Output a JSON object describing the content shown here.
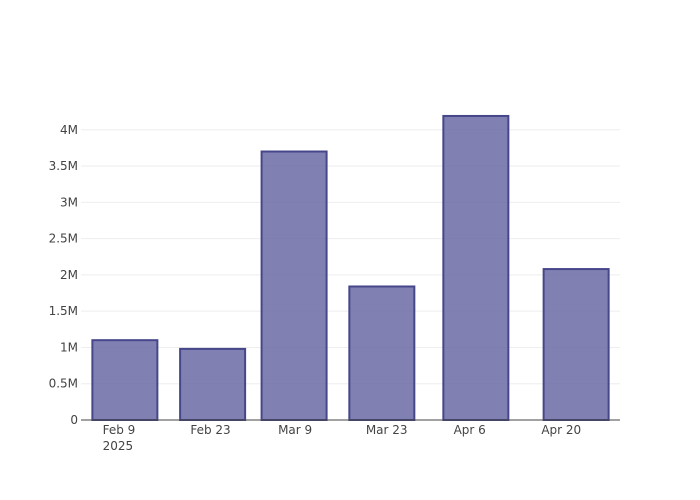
{
  "chart_data": {
    "type": "bar",
    "categories": [
      "2025-02-09",
      "2025-02-23",
      "2025-03-09",
      "2025-03-23",
      "2025-04-06",
      "2025-04-20"
    ],
    "bars": [
      {
        "x": "2025-02-10",
        "y": 1100000
      },
      {
        "x": "2025-02-24",
        "y": 980000
      },
      {
        "x": "2025-03-09",
        "y": 3700000
      },
      {
        "x": "2025-03-23",
        "y": 1840000
      },
      {
        "x": "2025-04-07",
        "y": 4190000
      },
      {
        "x": "2025-04-23",
        "y": 2080000
      }
    ],
    "x_tick_labels": [
      "Feb 9",
      "Feb 23",
      "Mar 9",
      "Mar 23",
      "Apr 6",
      "Apr 20"
    ],
    "x_tick_year": "2025",
    "y_tick_values": [
      0,
      500000,
      1000000,
      1500000,
      2000000,
      2500000,
      3000000,
      3500000,
      4000000
    ],
    "y_tick_labels": [
      "0",
      "0.5M",
      "1M",
      "1.5M",
      "2M",
      "2.5M",
      "3M",
      "3.5M",
      "4M"
    ],
    "ylim": [
      0,
      4410000
    ],
    "grid": true,
    "title": "",
    "xlabel": "",
    "ylabel": "",
    "bar_color": "#6a6aa6",
    "bar_border_color": "#46468a",
    "axis_color": "#444444",
    "grid_color": "#eeeeee"
  }
}
